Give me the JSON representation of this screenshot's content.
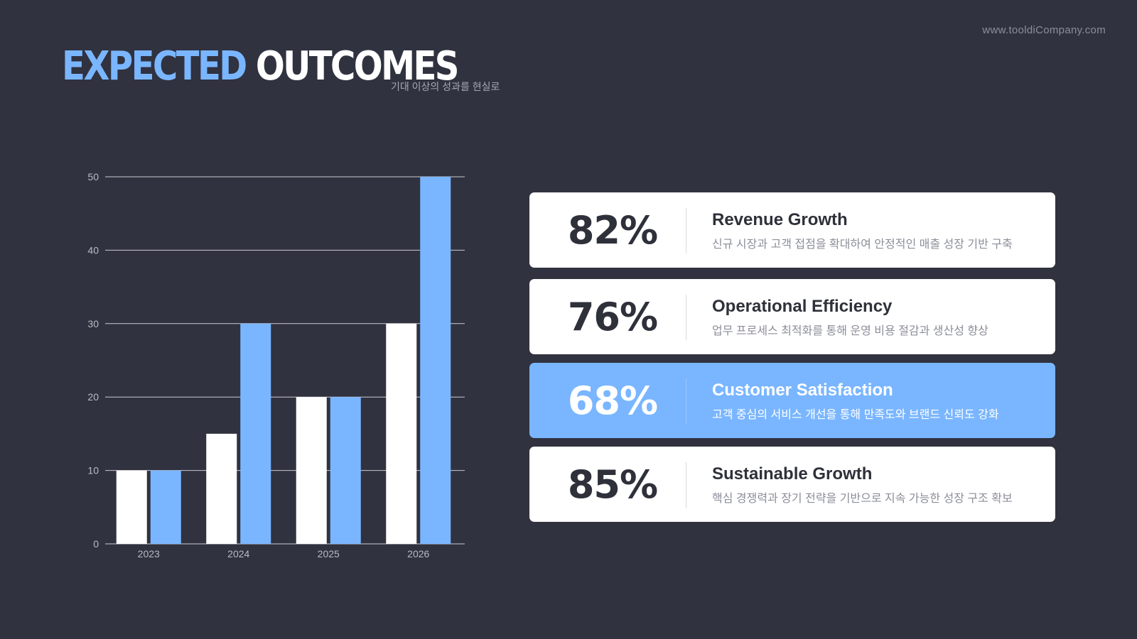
{
  "website": "www.tooldiCompany.com",
  "header": {
    "title_part1": "EXPECTED",
    "title_part2": "OUTCOMES",
    "subtitle": "기대 이상의 성과를 현실로"
  },
  "colors": {
    "background": "#30323f",
    "accent": "#7ab6ff",
    "white": "#ffffff"
  },
  "chart_data": {
    "type": "bar",
    "categories": [
      "2023",
      "2024",
      "2025",
      "2026"
    ],
    "series": [
      {
        "values": [
          10,
          15,
          20,
          30
        ],
        "color": "#ffffff"
      },
      {
        "values": [
          10,
          30,
          20,
          50
        ],
        "color": "#7ab6ff"
      }
    ],
    "yticks": [
      0,
      10,
      20,
      30,
      40,
      50
    ],
    "ylim": [
      0,
      50
    ],
    "grid": true
  },
  "cards": [
    {
      "pct": "82%",
      "label": "Revenue Growth",
      "desc": "신규 시장과 고객 접점을 확대하여 안정적인 매출 성장 기반 구축",
      "highlight": false
    },
    {
      "pct": "76%",
      "label": "Operational Efficiency",
      "desc": "업무 프로세스 최적화를 통해 운영 비용 절감과 생산성 향상",
      "highlight": false
    },
    {
      "pct": "68%",
      "label": "Customer Satisfaction",
      "desc": "고객 중심의 서비스 개선을 통해 만족도와 브랜드 신뢰도 강화",
      "highlight": true
    },
    {
      "pct": "85%",
      "label": "Sustainable Growth",
      "desc": "핵심 경쟁력과 장기 전략을 기반으로 지속 가능한 성장 구조 확보",
      "highlight": false
    }
  ]
}
